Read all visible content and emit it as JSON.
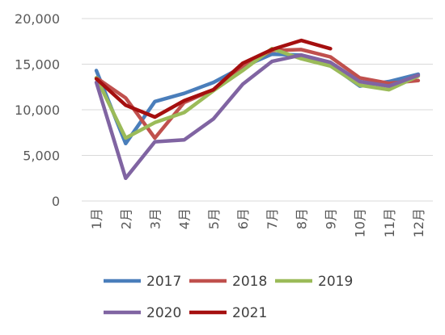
{
  "chart_data": {
    "type": "line",
    "title": "",
    "xlabel": "",
    "ylabel": "",
    "categories": [
      "1月",
      "2月",
      "3月",
      "4月",
      "5月",
      "6月",
      "7月",
      "8月",
      "9月",
      "10月",
      "11月",
      "12月"
    ],
    "ylim": [
      0,
      20000
    ],
    "yticks": [
      0,
      5000,
      10000,
      15000,
      20000
    ],
    "ytick_labels": [
      "0",
      "5,000",
      "10,000",
      "15,000",
      "20,000"
    ],
    "grid": true,
    "legend_position": "bottom",
    "series": [
      {
        "name": "2017",
        "color": "#4a7ebb",
        "values": [
          14300,
          6300,
          10900,
          11800,
          13000,
          14700,
          16100,
          16000,
          14900,
          12600,
          13100,
          13900
        ]
      },
      {
        "name": "2018",
        "color": "#c0504d",
        "values": [
          13500,
          11300,
          6900,
          10800,
          12200,
          14800,
          16500,
          16600,
          15800,
          13500,
          12900,
          13200
        ]
      },
      {
        "name": "2019",
        "color": "#9bbb59",
        "values": [
          13500,
          6900,
          8600,
          9700,
          12100,
          14300,
          16700,
          15600,
          14800,
          12700,
          12200,
          13700
        ]
      },
      {
        "name": "2020",
        "color": "#8064a2",
        "values": [
          13000,
          2500,
          6500,
          6700,
          9000,
          12800,
          15300,
          16000,
          15200,
          13100,
          12600,
          13800
        ]
      },
      {
        "name": "2021",
        "color": "#a50f0f",
        "values": [
          13400,
          10500,
          9200,
          11000,
          12200,
          15100,
          16600,
          17600,
          16700,
          null,
          null,
          null
        ]
      }
    ]
  }
}
